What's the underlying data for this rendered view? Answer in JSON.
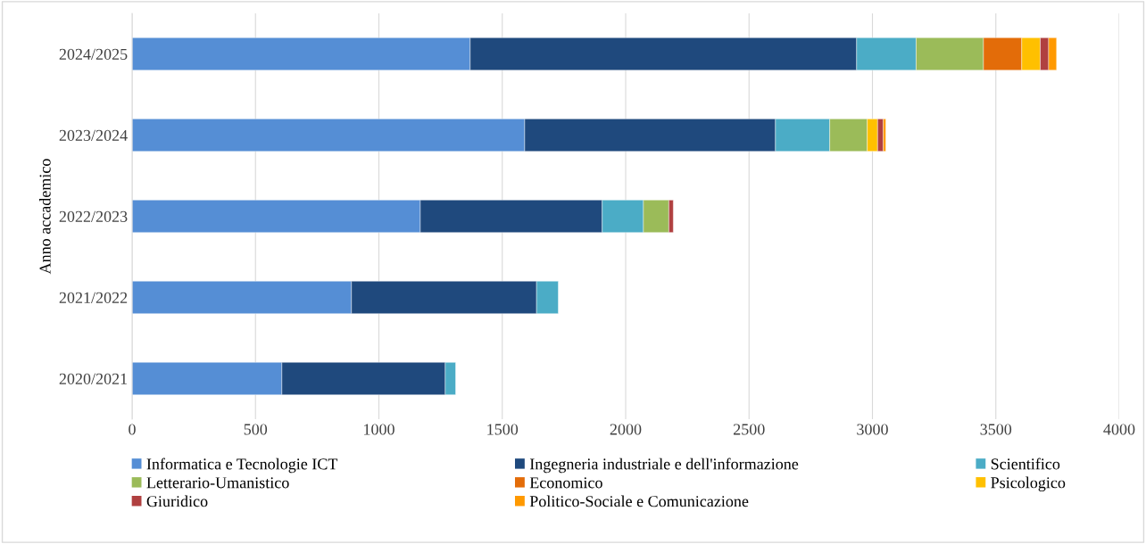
{
  "chart_data": {
    "type": "bar",
    "orientation": "horizontal",
    "stacked": true,
    "ylabel": "Anno accademico",
    "categories": [
      "2024/2025",
      "2023/2024",
      "2022/2023",
      "2021/2022",
      "2020/2021"
    ],
    "series": [
      {
        "name": "Informatica e Tecnologie ICT",
        "color": "#558ed5",
        "values": [
          1370,
          1591,
          1168,
          889,
          607
        ]
      },
      {
        "name": "Ingegneria industriale e dell'informazione",
        "color": "#1f497d",
        "values": [
          1566,
          1016,
          737,
          750,
          662
        ]
      },
      {
        "name": "Scientifico",
        "color": "#4bacc6",
        "values": [
          241,
          220,
          167,
          88,
          42
        ]
      },
      {
        "name": "Letterario-Umanistico",
        "color": "#9bbb59",
        "values": [
          273,
          152,
          103,
          null,
          null
        ]
      },
      {
        "name": "Economico",
        "color": "#e36c09",
        "values": [
          155,
          null,
          null,
          null,
          null
        ]
      },
      {
        "name": "Psicologico",
        "color": "#ffc000",
        "values": [
          75,
          42,
          null,
          null,
          null
        ]
      },
      {
        "name": "Giuridico",
        "color": "#b04040",
        "values": [
          34,
          23,
          18,
          null,
          null
        ]
      },
      {
        "name": "Politico-Sociale e Comunicazione",
        "color": "#ff9900",
        "values": [
          32,
          10,
          null,
          null,
          null
        ]
      }
    ],
    "xlim": [
      0,
      4000
    ],
    "xticks": [
      0,
      500,
      1000,
      1500,
      2000,
      2500,
      3000,
      3500,
      4000
    ],
    "grid": "x",
    "legend": "bottom"
  }
}
